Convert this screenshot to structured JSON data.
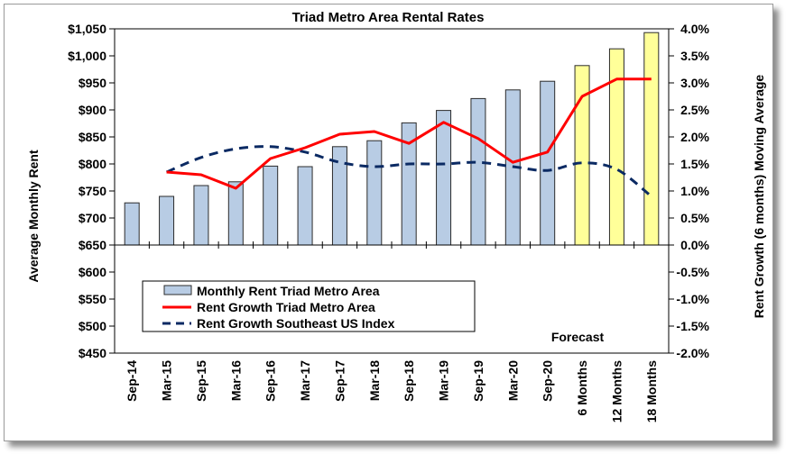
{
  "chart_data": {
    "type": "bar",
    "title": "Triad Metro Area Rental Rates",
    "ylabel": "Average Monthly Rent",
    "y2label": "Rent Growth (6 months) Moving Average",
    "xlabel": "",
    "categories": [
      "Sep-14",
      "Mar-15",
      "Sep-15",
      "Mar-16",
      "Sep-16",
      "Mar-17",
      "Sep-17",
      "Mar-18",
      "Sep-18",
      "Mar-19",
      "Sep-19",
      "Mar-20",
      "Sep-20",
      "6 Months",
      "12 Months",
      "18 Months"
    ],
    "ylim": [
      450,
      1050
    ],
    "y2lim": [
      -2.0,
      4.0
    ],
    "y_ticks": [
      "$450",
      "$500",
      "$550",
      "$600",
      "$650",
      "$700",
      "$750",
      "$800",
      "$850",
      "$900",
      "$950",
      "$1,000",
      "$1,050"
    ],
    "y2_ticks": [
      "-2.0%",
      "-1.5%",
      "-1.0%",
      "-0.5%",
      "0.0%",
      "0.5%",
      "1.0%",
      "1.5%",
      "2.0%",
      "2.5%",
      "3.0%",
      "3.5%",
      "4.0%"
    ],
    "annotation": "Forecast",
    "legend_position": "lower-left",
    "grid": false,
    "colors": {
      "bar_actual": "#b8cce4",
      "bar_forecast": "#ffff99",
      "bar_edge": "#2b2b2b",
      "triad_growth": "#ff0000",
      "southeast_growth": "#0b2a63"
    },
    "series": [
      {
        "name": "Monthly Rent Triad Metro Area",
        "type": "bar",
        "axis": "left",
        "values": [
          728,
          740,
          760,
          767,
          796,
          795,
          832,
          843,
          876,
          899,
          921,
          937,
          953,
          982,
          1013,
          1043
        ],
        "forecast_from_index": 13
      },
      {
        "name": "Rent Growth Triad Metro Area",
        "type": "line",
        "axis": "right",
        "values": [
          null,
          1.35,
          1.3,
          1.05,
          1.6,
          1.8,
          2.05,
          2.1,
          1.88,
          2.27,
          1.97,
          1.53,
          1.72,
          2.75,
          3.07,
          3.07
        ]
      },
      {
        "name": "Rent Growth Southeast US Index",
        "type": "line",
        "axis": "right",
        "style": "dashed",
        "values": [
          null,
          1.35,
          1.62,
          1.78,
          1.82,
          1.72,
          1.53,
          1.45,
          1.5,
          1.5,
          1.53,
          1.45,
          1.38,
          1.52,
          1.4,
          0.9
        ]
      }
    ]
  }
}
